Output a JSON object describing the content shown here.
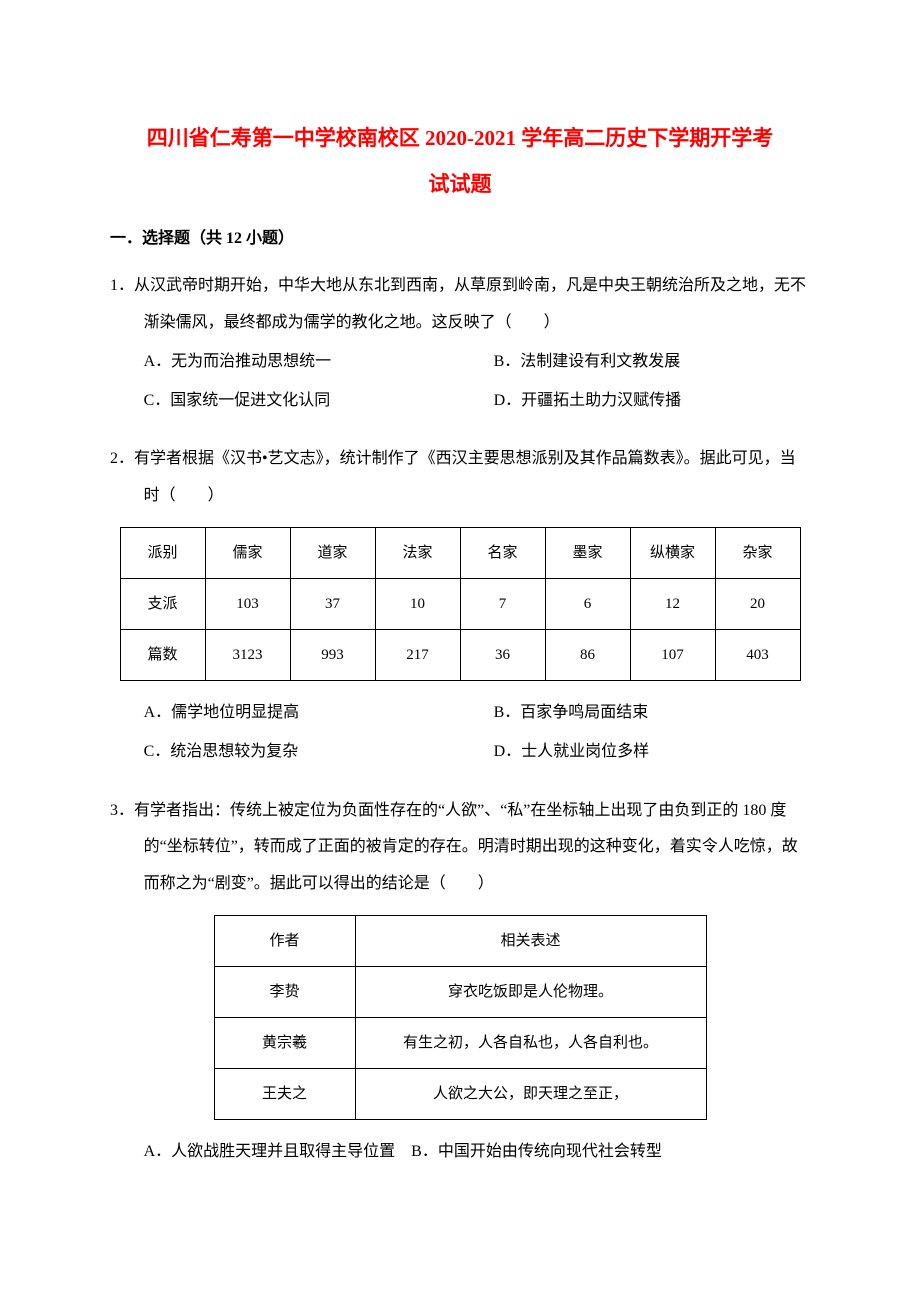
{
  "title_line1": "四川省仁寿第一中学校南校区 2020-2021 学年高二历史下学期开学考",
  "title_line2": "试试题",
  "section1_heading": "一．选择题（共 12 小题）",
  "q1": {
    "stem": "1．从汉武帝时期开始，中华大地从东北到西南，从草原到岭南，凡是中央王朝统治所及之地，无不渐染儒风，最终都成为儒学的教化之地。这反映了（　　）",
    "optA": "A．无为而治推动思想统一",
    "optB": "B．法制建设有利文教发展",
    "optC": "C．国家统一促进文化认同",
    "optD": "D．开疆拓土助力汉赋传播"
  },
  "q2": {
    "stem": "2．有学者根据《汉书•艺文志》，统计制作了《西汉主要思想派别及其作品篇数表》。据此可见，当时（　　）",
    "table": {
      "headers": [
        "派别",
        "儒家",
        "道家",
        "法家",
        "名家",
        "墨家",
        "纵横家",
        "杂家"
      ],
      "row1": [
        "支派",
        "103",
        "37",
        "10",
        "7",
        "6",
        "12",
        "20"
      ],
      "row2": [
        "篇数",
        "3123",
        "993",
        "217",
        "36",
        "86",
        "107",
        "403"
      ]
    },
    "optA": "A．儒学地位明显提高",
    "optB": "B．百家争鸣局面结束",
    "optC": "C．统治思想较为复杂",
    "optD": "D．士人就业岗位多样"
  },
  "q3": {
    "stem": "3．有学者指出：传统上被定位为负面性存在的“人欲”、“私”在坐标轴上出现了由负到正的 180 度的“坐标转位”，转而成了正面的被肯定的存在。明清时期出现的这种变化，着实令人吃惊，故而称之为“剧变”。据此可以得出的结论是（　　）",
    "table": {
      "header_author": "作者",
      "header_quote": "相关表述",
      "rows": [
        {
          "author": "李贽",
          "quote": "穿衣吃饭即是人伦物理。"
        },
        {
          "author": "黄宗羲",
          "quote": "有生之初，人各自私也，人各自利也。"
        },
        {
          "author": "王夫之",
          "quote": "人欲之大公，即天理之至正，"
        }
      ]
    },
    "optA": "A．人欲战胜天理并且取得主导位置",
    "optB": "B．中国开始由传统向现代社会转型"
  }
}
